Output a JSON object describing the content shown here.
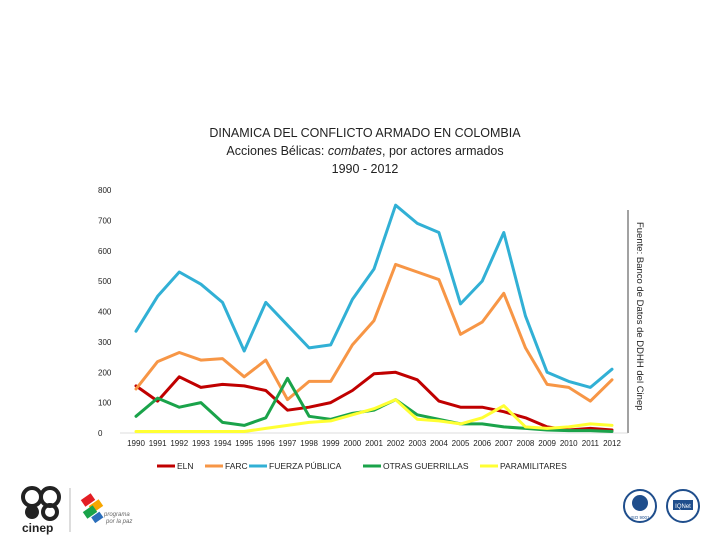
{
  "chart_data": {
    "type": "line",
    "title_line1": "DINAMICA DEL CONFLICTO ARMADO EN COLOMBIA",
    "title_line2_prefix": "Acciones Bélicas: ",
    "title_line2_em": "combates",
    "title_line2_suffix": ", por actores armados",
    "title_line3": "1990 - 2012",
    "ylim": [
      0,
      800
    ],
    "yticks": [
      "0",
      "100",
      "200",
      "300",
      "400",
      "500",
      "600",
      "700",
      "800"
    ],
    "x": [
      "1990",
      "1991",
      "1992",
      "1993",
      "1994",
      "1995",
      "1996",
      "1997",
      "1998",
      "1999",
      "2000",
      "2001",
      "2002",
      "2003",
      "2004",
      "2005",
      "2006",
      "2007",
      "2008",
      "2009",
      "2010",
      "2011",
      "2012"
    ],
    "xtick_labels": [
      "1990",
      "1991",
      "1992",
      "1993",
      "1994",
      "1995",
      "1996",
      "1997",
      "1998",
      "1999",
      "2000",
      "2001",
      "2002",
      "2003",
      "2004",
      "2005",
      "2006",
      "2007",
      "2008",
      "2009",
      "2010",
      "2011",
      "2012"
    ],
    "source_note": "Fuente: Banco de Datos de DDHH del Cinep",
    "series": [
      {
        "name": "ELN",
        "color": "#c00000",
        "values": [
          155,
          105,
          185,
          150,
          160,
          155,
          140,
          75,
          85,
          100,
          140,
          195,
          200,
          175,
          105,
          85,
          85,
          70,
          50,
          20,
          10,
          15,
          10
        ]
      },
      {
        "name": "FARC",
        "color": "#f79646",
        "values": [
          145,
          235,
          265,
          240,
          245,
          185,
          240,
          110,
          170,
          170,
          290,
          370,
          555,
          530,
          505,
          325,
          365,
          460,
          280,
          160,
          150,
          105,
          175
        ]
      },
      {
        "name": "FUERZA PÚBLICA",
        "color": "#31b0d5",
        "values": [
          335,
          450,
          530,
          490,
          430,
          270,
          430,
          355,
          280,
          290,
          440,
          540,
          750,
          690,
          660,
          425,
          500,
          660,
          385,
          200,
          170,
          150,
          210
        ]
      },
      {
        "name": "OTRAS GUERRILLAS",
        "color": "#1aa34a",
        "values": [
          55,
          115,
          85,
          100,
          35,
          25,
          50,
          180,
          55,
          45,
          65,
          75,
          110,
          60,
          45,
          30,
          30,
          20,
          15,
          10,
          8,
          8,
          5
        ]
      },
      {
        "name": "PARAMILITARES",
        "color": "#ffff33",
        "values": [
          5,
          5,
          5,
          5,
          5,
          5,
          15,
          25,
          35,
          40,
          60,
          80,
          110,
          45,
          40,
          30,
          50,
          90,
          20,
          15,
          20,
          30,
          25
        ]
      }
    ]
  },
  "logos": {
    "cinep_label": "cinep",
    "programa_label_1": "programa",
    "programa_label_2": "por la paz",
    "badge1_label": "ISO 9001",
    "badge2_label": "IQNet"
  }
}
